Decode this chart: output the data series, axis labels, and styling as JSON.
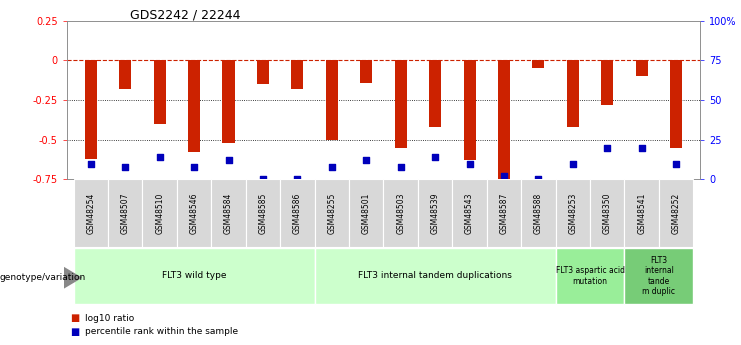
{
  "title": "GDS2242 / 22244",
  "samples": [
    "GSM48254",
    "GSM48507",
    "GSM48510",
    "GSM48546",
    "GSM48584",
    "GSM48585",
    "GSM48586",
    "GSM48255",
    "GSM48501",
    "GSM48503",
    "GSM48539",
    "GSM48543",
    "GSM48587",
    "GSM48588",
    "GSM48253",
    "GSM48350",
    "GSM48541",
    "GSM48252"
  ],
  "log10_ratio": [
    -0.62,
    -0.18,
    -0.4,
    -0.58,
    -0.52,
    -0.15,
    -0.18,
    -0.5,
    -0.14,
    -0.55,
    -0.42,
    -0.63,
    -0.78,
    -0.05,
    -0.42,
    -0.28,
    -0.1,
    -0.55
  ],
  "percentile_rank": [
    10,
    8,
    14,
    8,
    12,
    0,
    0,
    8,
    12,
    8,
    14,
    10,
    2,
    0,
    10,
    20,
    20,
    10
  ],
  "groups": [
    {
      "label": "FLT3 wild type",
      "start": 0,
      "end": 7,
      "color": "#ccffcc"
    },
    {
      "label": "FLT3 internal tandem duplications",
      "start": 7,
      "end": 14,
      "color": "#ccffcc"
    },
    {
      "label": "FLT3 aspartic acid\nmutation",
      "start": 14,
      "end": 16,
      "color": "#99ee99"
    },
    {
      "label": "FLT3\ninternal\ntande\nm duplic",
      "start": 16,
      "end": 18,
      "color": "#77cc77"
    }
  ],
  "ylim_left": [
    -0.75,
    0.25
  ],
  "ylim_right": [
    0,
    100
  ],
  "bar_color": "#cc2200",
  "dot_color": "#0000bb",
  "plot_bg": "#ffffff",
  "cell_bg": "#d8d8d8",
  "dotted_lines": [
    -0.25,
    -0.5
  ],
  "right_ticks": [
    0,
    25,
    50,
    75,
    100
  ],
  "right_tick_labels": [
    "0",
    "25",
    "50",
    "75",
    "100%"
  ],
  "left_ticks": [
    -0.75,
    -0.5,
    -0.25,
    0,
    0.25
  ],
  "left_tick_labels": [
    "-0.75",
    "-0.5",
    "-0.25",
    "0",
    "0.25"
  ]
}
